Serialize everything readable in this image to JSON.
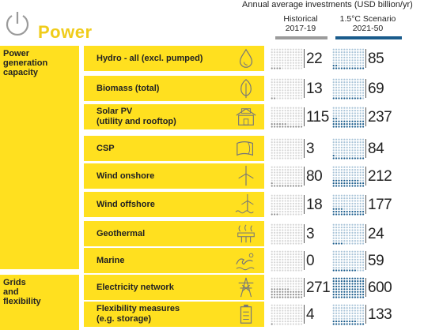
{
  "header": {
    "title": "Power",
    "metric_label": "Annual average investments (USD billion/yr)",
    "historical_label": "Historical",
    "historical_period": "2017-19",
    "scenario_label": "1.5°C Scenario",
    "scenario_period": "2021-50"
  },
  "colors": {
    "yellow": "#ffe01f",
    "title_yellow": "#f0cc1a",
    "historical": "#9b9b9b",
    "scenario": "#1a5c8c",
    "scenario_light": "#a9c4d8"
  },
  "groups": [
    {
      "label": "Power generation capacity"
    },
    {
      "label": "Grids and flexibility"
    }
  ],
  "rows": [
    {
      "label": "Hydro - all (excl. pumped)",
      "icon": "water-drop-icon",
      "historical": "22",
      "scenario": "85"
    },
    {
      "label": "Biomass (total)",
      "icon": "leaf-icon",
      "historical": "13",
      "scenario": "69"
    },
    {
      "label": "Solar PV\n(utility and rooftop)",
      "icon": "solar-roof-icon",
      "historical": "115",
      "scenario": "237"
    },
    {
      "label": "CSP",
      "icon": "csp-mirror-icon",
      "historical": "3",
      "scenario": "84"
    },
    {
      "label": "Wind onshore",
      "icon": "wind-turbine-icon",
      "historical": "80",
      "scenario": "212"
    },
    {
      "label": "Wind offshore",
      "icon": "offshore-wind-icon",
      "historical": "18",
      "scenario": "177"
    },
    {
      "label": "Geothermal",
      "icon": "geothermal-icon",
      "historical": "3",
      "scenario": "24"
    },
    {
      "label": "Marine",
      "icon": "wave-icon",
      "historical": "0",
      "scenario": "59"
    },
    {
      "label": "Electricity network",
      "icon": "pylon-icon",
      "historical": "271",
      "scenario": "600"
    },
    {
      "label": "Flexibility measures\n(e.g. storage)",
      "icon": "battery-icon",
      "historical": "4",
      "scenario": "133"
    }
  ]
}
